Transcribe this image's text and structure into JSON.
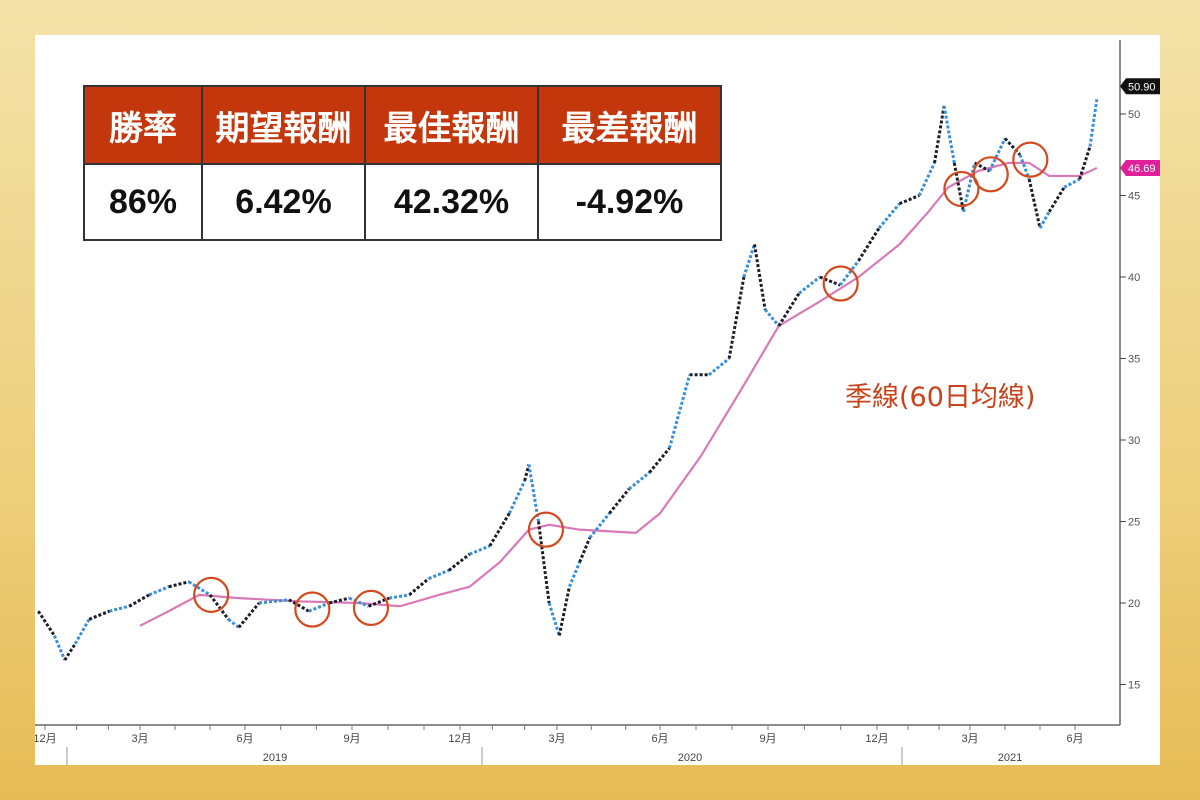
{
  "stats_table": {
    "headers": [
      "勝率",
      "期望報酬",
      "最佳報酬",
      "最差報酬"
    ],
    "values": [
      "86%",
      "6.42%",
      "42.32%",
      "-4.92%"
    ],
    "header_color": "#c4360c"
  },
  "annotation": "季線(60日均線)",
  "chart_data": {
    "type": "line",
    "y_axis": {
      "side": "right",
      "ticks": [
        15,
        20,
        25,
        30,
        35,
        40,
        45,
        50
      ],
      "ylim": [
        13,
        53
      ]
    },
    "x_axis": {
      "month_ticks": [
        "12月",
        "3月",
        "6月",
        "9月",
        "12月",
        "3月",
        "6月",
        "9月",
        "12月",
        "3月",
        "6月"
      ],
      "tick_dates": [
        "2018-12-01",
        "2019-03-01",
        "2019-06-01",
        "2019-09-01",
        "2019-12-01",
        "2020-03-01",
        "2020-06-01",
        "2020-09-01",
        "2020-12-01",
        "2021-03-01",
        "2021-06-01"
      ],
      "years": [
        "2019",
        "2020",
        "2021"
      ]
    },
    "grid": false,
    "last_price": {
      "label": "50.90",
      "color": "#111111"
    },
    "last_ma": {
      "label": "46.69",
      "color": "#e0209a"
    },
    "series": [
      {
        "kind": "price",
        "colors": [
          "#1e1e2a",
          "#3a8fd8"
        ],
        "points": [
          [
            "2018-11-25",
            19.5
          ],
          [
            "2018-12-10",
            18
          ],
          [
            "2018-12-20",
            16.5
          ],
          [
            "2018-12-30",
            17.5
          ],
          [
            "2019-01-13",
            19
          ],
          [
            "2019-02-02",
            19.5
          ],
          [
            "2019-02-21",
            19.8
          ],
          [
            "2019-03-09",
            20.5
          ],
          [
            "2019-03-26",
            21
          ],
          [
            "2019-04-13",
            21.3
          ],
          [
            "2019-05-01",
            20.5
          ],
          [
            "2019-05-17",
            19
          ],
          [
            "2019-05-26",
            18.5
          ],
          [
            "2019-06-13",
            20
          ],
          [
            "2019-07-08",
            20.2
          ],
          [
            "2019-07-25",
            19.5
          ],
          [
            "2019-08-12",
            20
          ],
          [
            "2019-08-29",
            20.3
          ],
          [
            "2019-09-15",
            19.8
          ],
          [
            "2019-10-02",
            20.3
          ],
          [
            "2019-10-19",
            20.5
          ],
          [
            "2019-11-05",
            21.5
          ],
          [
            "2019-11-22",
            22
          ],
          [
            "2019-12-10",
            23
          ],
          [
            "2019-12-29",
            23.5
          ],
          [
            "2020-01-17",
            25.5
          ],
          [
            "2020-02-01",
            27.5
          ],
          [
            "2020-02-05",
            28.5
          ],
          [
            "2020-02-14",
            25
          ],
          [
            "2020-02-24",
            20
          ],
          [
            "2020-03-03",
            18
          ],
          [
            "2020-03-12",
            21
          ],
          [
            "2020-03-21",
            22.5
          ],
          [
            "2020-03-30",
            24
          ],
          [
            "2020-04-17",
            25.5
          ],
          [
            "2020-05-04",
            27
          ],
          [
            "2020-05-22",
            28
          ],
          [
            "2020-06-09",
            29.5
          ],
          [
            "2020-06-26",
            34
          ],
          [
            "2020-07-12",
            34
          ],
          [
            "2020-07-29",
            35
          ],
          [
            "2020-08-11",
            40
          ],
          [
            "2020-08-20",
            42
          ],
          [
            "2020-08-29",
            38
          ],
          [
            "2020-09-10",
            37
          ],
          [
            "2020-09-27",
            39
          ],
          [
            "2020-10-14",
            40
          ],
          [
            "2020-10-31",
            39.5
          ],
          [
            "2020-11-16",
            41
          ],
          [
            "2020-12-03",
            43
          ],
          [
            "2020-12-23",
            44.5
          ],
          [
            "2021-01-12",
            45
          ],
          [
            "2021-01-27",
            47
          ],
          [
            "2021-02-06",
            50.5
          ],
          [
            "2021-02-16",
            47
          ],
          [
            "2021-02-25",
            44
          ],
          [
            "2021-03-05",
            47
          ],
          [
            "2021-03-18",
            46.5
          ],
          [
            "2021-04-01",
            48.5
          ],
          [
            "2021-04-14",
            47.5
          ],
          [
            "2021-04-22",
            46
          ],
          [
            "2021-05-01",
            43
          ],
          [
            "2021-05-09",
            44
          ],
          [
            "2021-05-22",
            45.5
          ],
          [
            "2021-06-05",
            46
          ],
          [
            "2021-06-14",
            48
          ],
          [
            "2021-06-20",
            50.9
          ]
        ]
      },
      {
        "kind": "ma",
        "color": "#d97ab8",
        "points": [
          [
            "2019-03-01",
            18.6
          ],
          [
            "2019-03-26",
            19.5
          ],
          [
            "2019-04-22",
            20.5
          ],
          [
            "2019-05-26",
            20.3
          ],
          [
            "2019-07-17",
            20.1
          ],
          [
            "2019-09-07",
            20
          ],
          [
            "2019-10-11",
            19.8
          ],
          [
            "2019-11-14",
            20.5
          ],
          [
            "2019-12-10",
            21
          ],
          [
            "2020-01-08",
            22.5
          ],
          [
            "2020-02-05",
            24.5
          ],
          [
            "2020-02-24",
            24.8
          ],
          [
            "2020-03-21",
            24.5
          ],
          [
            "2020-05-10",
            24.3
          ],
          [
            "2020-06-01",
            25.5
          ],
          [
            "2020-07-05",
            29
          ],
          [
            "2020-08-08",
            33
          ],
          [
            "2020-09-10",
            37
          ],
          [
            "2020-10-14",
            38.5
          ],
          [
            "2020-11-16",
            40
          ],
          [
            "2020-12-23",
            42
          ],
          [
            "2021-01-21",
            44
          ],
          [
            "2021-02-10",
            45.5
          ],
          [
            "2021-03-08",
            46.5
          ],
          [
            "2021-04-04",
            47
          ],
          [
            "2021-04-22",
            47
          ],
          [
            "2021-05-09",
            46.2
          ],
          [
            "2021-06-05",
            46.2
          ],
          [
            "2021-06-20",
            46.69
          ]
        ]
      }
    ],
    "highlights": {
      "color": "#d24a1e",
      "points": [
        [
          "2019-05-02",
          20.5
        ],
        [
          "2019-07-28",
          19.6
        ],
        [
          "2019-09-17",
          19.7
        ],
        [
          "2020-02-21",
          24.5
        ],
        [
          "2020-11-01",
          39.6
        ],
        [
          "2021-02-23",
          45.4
        ],
        [
          "2021-03-19",
          46.3
        ],
        [
          "2021-04-23",
          47.2
        ]
      ]
    }
  }
}
